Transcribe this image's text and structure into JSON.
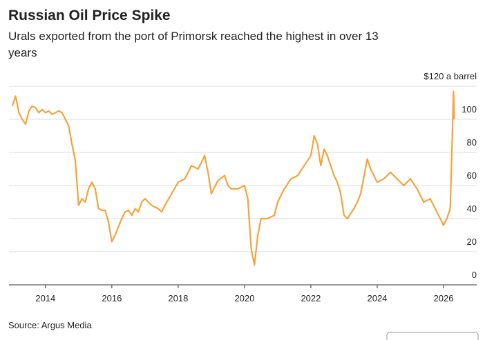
{
  "chart_data": {
    "type": "line",
    "title": "Russian Oil Price Spike",
    "subtitle": [
      "Urals exported from the port of Primorsk reached the highest in over 13",
      "years"
    ],
    "source": "Source: Argus Media",
    "x": [
      2013.0,
      2013.1,
      2013.2,
      2013.3,
      2013.4,
      2013.5,
      2013.6,
      2013.7,
      2013.8,
      2013.9,
      2014.0,
      2014.1,
      2014.2,
      2014.3,
      2014.4,
      2014.5,
      2014.6,
      2014.7,
      2014.8,
      2014.9,
      2015.0,
      2015.1,
      2015.2,
      2015.3,
      2015.4,
      2015.5,
      2015.6,
      2015.7,
      2015.8,
      2015.9,
      2016.0,
      2016.1,
      2016.2,
      2016.3,
      2016.4,
      2016.5,
      2016.6,
      2016.7,
      2016.8,
      2016.9,
      2017.0,
      2017.2,
      2017.4,
      2017.5,
      2017.6,
      2017.8,
      2018.0,
      2018.2,
      2018.4,
      2018.6,
      2018.8,
      2018.9,
      2019.0,
      2019.2,
      2019.4,
      2019.5,
      2019.6,
      2019.8,
      2020.0,
      2020.1,
      2020.2,
      2020.3,
      2020.4,
      2020.5,
      2020.7,
      2020.9,
      2021.0,
      2021.2,
      2021.4,
      2021.6,
      2021.8,
      2022.0,
      2022.1,
      2022.2,
      2022.3,
      2022.4,
      2022.5,
      2022.7,
      2022.8,
      2022.9,
      2023.0,
      2023.1,
      2023.3,
      2023.4,
      2023.5,
      2023.7,
      2023.8,
      2024.0,
      2024.2,
      2024.4,
      2024.6,
      2024.8,
      2025.0,
      2025.2,
      2025.4,
      2025.6,
      2025.8,
      2025.9,
      2026.0,
      2026.1,
      2026.2,
      2026.25,
      2026.3,
      2026.32
    ],
    "series": [
      {
        "color": "#f5a33a",
        "values": [
          108,
          114,
          104,
          100,
          97,
          105,
          108,
          107,
          104,
          106,
          104,
          105,
          103,
          104,
          105,
          104,
          100,
          96,
          85,
          75,
          48,
          52,
          50,
          58,
          62,
          58,
          46,
          45,
          45,
          38,
          26,
          30,
          35,
          40,
          44,
          45,
          42,
          46,
          44,
          50,
          52,
          48,
          46,
          44,
          48,
          55,
          62,
          64,
          72,
          70,
          78,
          68,
          55,
          63,
          66,
          60,
          58,
          58,
          60,
          52,
          22,
          12,
          30,
          40,
          40,
          42,
          50,
          58,
          64,
          66,
          72,
          78,
          90,
          85,
          72,
          82,
          78,
          66,
          62,
          55,
          42,
          40,
          46,
          50,
          55,
          76,
          70,
          62,
          64,
          68,
          64,
          60,
          64,
          58,
          50,
          52,
          44,
          40,
          36,
          40,
          46,
          80,
          117,
          100
        ]
      }
    ],
    "xlim": [
      2012.9,
      2027.0
    ],
    "xticks": [
      2014,
      2016,
      2018,
      2020,
      2022,
      2024,
      2026
    ],
    "ylim": [
      0,
      120
    ],
    "yticks": [
      0,
      20,
      40,
      60,
      80,
      100,
      {
        "value": 120,
        "label": "$120 a barrel"
      }
    ],
    "grid": true
  }
}
